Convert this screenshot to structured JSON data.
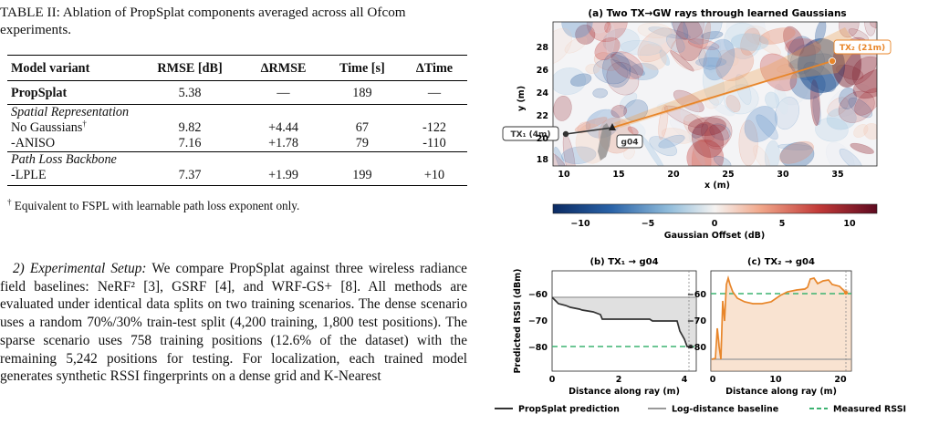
{
  "table": {
    "caption": "TABLE II: Ablation of PropSplat components averaged across all Ofcom experiments.",
    "headers": [
      "Model variant",
      "RMSE [dB]",
      "ΔRMSE",
      "Time [s]",
      "ΔTime"
    ],
    "main_row": {
      "variant": "PropSplat",
      "rmse": "5.38",
      "drmse": "—",
      "time": "189",
      "dtime": "—"
    },
    "section1": "Spatial Representation",
    "rows1": [
      {
        "variant": "No Gaussians",
        "mark": "†",
        "rmse": "9.82",
        "drmse": "+4.44",
        "time": "67",
        "dtime": "-122"
      },
      {
        "variant": "-ANISO",
        "mark": "",
        "rmse": "7.16",
        "drmse": "+1.78",
        "time": "79",
        "dtime": "-110"
      }
    ],
    "section2": "Path Loss Backbone",
    "rows2": [
      {
        "variant": "-LPLE",
        "mark": "",
        "rmse": "7.37",
        "drmse": "+1.99",
        "time": "199",
        "dtime": "+10"
      }
    ],
    "footnote_mark": "†",
    "footnote": "Equivalent to FSPL with learnable path loss exponent only."
  },
  "body": {
    "heading": "2) Experimental Setup:",
    "text": "We compare PropSplat against three wireless radiance field baselines: NeRF² [3], GSRF [4], and WRF-GS+ [8]. All methods are evaluated under identical data splits on two training scenarios. The dense scenario uses a random 70%/30% train-test split (4,200 training, 1,800 test positions). The sparse scenario uses 758 training positions (12.6% of the dataset) with the remaining 5,242 positions for testing. For localization, each trained model generates synthetic RSSI fingerprints on a dense grid and K-Nearest"
  },
  "figure": {
    "panel_a": {
      "title": "(a) Two TX→GW rays through learned Gaussians",
      "xlabel": "x (m)",
      "ylabel": "y (m)",
      "xticks": [
        "10",
        "15",
        "20",
        "25",
        "30",
        "35"
      ],
      "yticks": [
        "18",
        "20",
        "22",
        "24",
        "26",
        "28"
      ],
      "tx1_label": "TX₁ (4m)",
      "tx2_label": "TX₂ (21m)",
      "gw_label": "g04",
      "colorbar_label": "Gaussian Offset (dB)",
      "colorbar_ticks": [
        "−10",
        "−5",
        "0",
        "5",
        "10"
      ],
      "colors": {
        "tx1": "#333333",
        "tx2": "#e8862a",
        "blue": "#2a5d9f",
        "red": "#b5262b"
      }
    },
    "panel_b": {
      "title": "(b) TX₁ → g04",
      "xlabel": "Distance along ray (m)",
      "ylabel": "Predicted RSSI (dBm)",
      "xticks": [
        "0",
        "2",
        "4"
      ],
      "yticks": [
        "−60",
        "−70",
        "−80"
      ]
    },
    "panel_c": {
      "title": "(c) TX₂ → g04",
      "xlabel": "Distance along ray (m)",
      "xticks": [
        "0",
        "10",
        "20"
      ],
      "yticks": [
        "−60",
        "−70",
        "−80"
      ]
    },
    "legend": [
      "PropSplat prediction",
      "Log-distance baseline",
      "Measured RSSI"
    ],
    "legend_colors": [
      "#333333",
      "#999999",
      "#3cb371"
    ]
  }
}
